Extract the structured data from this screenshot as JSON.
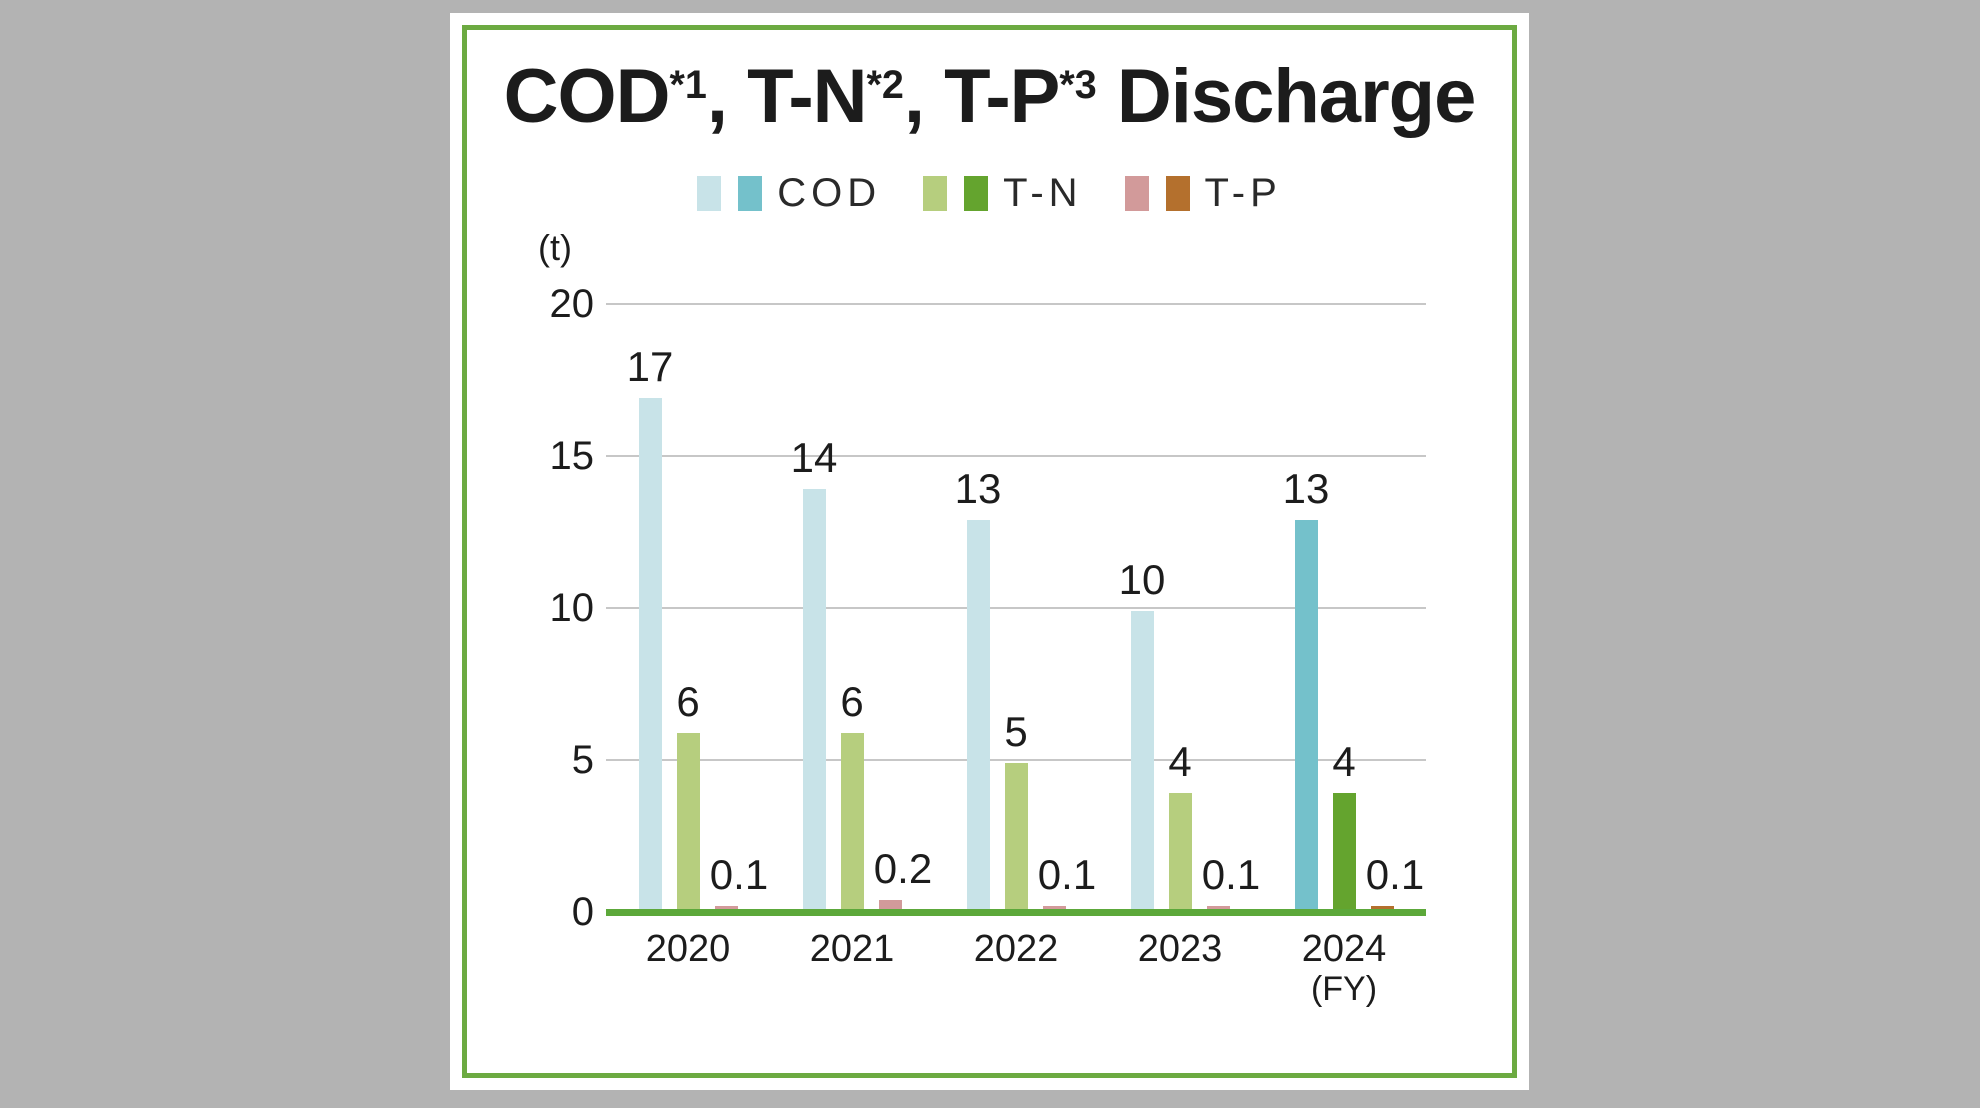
{
  "page": {
    "background_color": "#b3b3b3",
    "card_background": "#ffffff",
    "card_border_color": "#6caa41"
  },
  "chart_data": {
    "type": "bar",
    "title_text": "COD*1, T-N*2, T-P*3 Discharge",
    "title_segments": [
      {
        "text": "COD",
        "sup": false
      },
      {
        "text": "*1",
        "sup": true
      },
      {
        "text": ", T-N",
        "sup": false
      },
      {
        "text": "*2",
        "sup": true
      },
      {
        "text": ", T-P",
        "sup": false
      },
      {
        "text": "*3",
        "sup": true
      },
      {
        "text": " Discharge",
        "sup": false
      }
    ],
    "unit_label": "(t)",
    "categories": [
      "2020",
      "2021",
      "2022",
      "2023",
      "2024"
    ],
    "category_note_last": "(FY)",
    "highlighted_category": "2024",
    "yticks": [
      0,
      5,
      10,
      15,
      20
    ],
    "ylim": [
      0,
      20
    ],
    "grid": true,
    "legend_position": "top",
    "series": [
      {
        "name": "COD",
        "values": [
          17,
          14,
          13,
          10,
          13
        ],
        "labels": [
          "17",
          "14",
          "13",
          "10",
          "13"
        ],
        "color": "#c8e3e8",
        "color_highlight": "#74c1cb"
      },
      {
        "name": "T-N",
        "values": [
          6,
          6,
          5,
          4,
          4
        ],
        "labels": [
          "6",
          "6",
          "5",
          "4",
          "4"
        ],
        "color": "#b6ce7e",
        "color_highlight": "#64a42e"
      },
      {
        "name": "T-P",
        "values": [
          0.1,
          0.2,
          0.1,
          0.1,
          0.1
        ],
        "labels": [
          "0.1",
          "0.2",
          "0.1",
          "0.1",
          "0.1"
        ],
        "color": "#d29a9a",
        "color_highlight": "#b4702d"
      }
    ],
    "axis_line_color": "#5ca83a",
    "gridline_color": "#c7c7c7",
    "text_color": "#1c1c1c"
  }
}
